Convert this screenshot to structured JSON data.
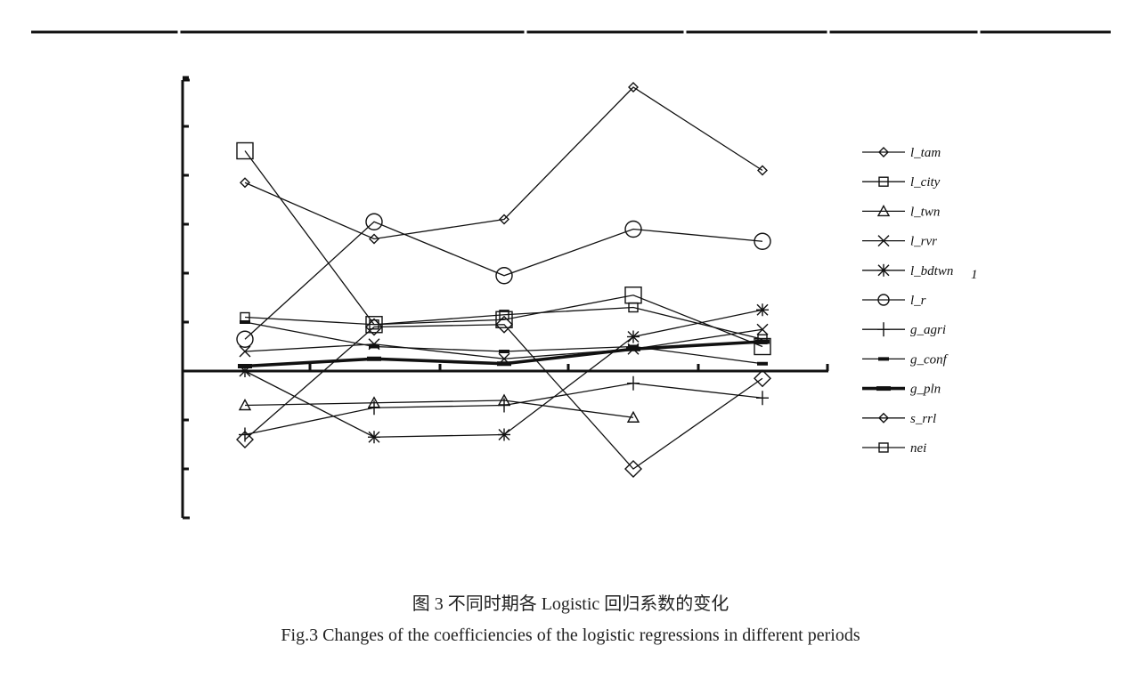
{
  "caption": {
    "cn": "图 3  不同时期各 Logistic 回归系数的变化",
    "en": "Fig.3  Changes of the coefficiencies of the logistic regressions in different periods"
  },
  "chart_data": {
    "type": "line",
    "title": "",
    "xlabel": "",
    "ylabel": "",
    "x": [
      1,
      2,
      3,
      4,
      5
    ],
    "ylim": [
      -3,
      6
    ],
    "grid": false,
    "legend_position": "right",
    "series": [
      {
        "name": "l_tam",
        "marker": "diamond-small",
        "values": [
          3.85,
          2.7,
          3.1,
          5.8,
          4.1
        ]
      },
      {
        "name": "l_city",
        "marker": "square-small",
        "values": [
          1.1,
          0.95,
          1.15,
          1.3,
          0.65
        ]
      },
      {
        "name": "l_twn",
        "marker": "triangle",
        "values": [
          -0.7,
          -0.65,
          -0.6,
          -0.95,
          null
        ]
      },
      {
        "name": "l_rvr",
        "marker": "x",
        "values": [
          0.4,
          0.55,
          0.25,
          0.45,
          0.85
        ]
      },
      {
        "name": "l_bdtwn1",
        "marker": "asterisk",
        "values": [
          0.0,
          -1.35,
          -1.3,
          0.7,
          1.25
        ]
      },
      {
        "name": "l_r",
        "marker": "circle",
        "values": [
          0.65,
          3.05,
          1.95,
          2.9,
          2.65
        ]
      },
      {
        "name": "g_agri",
        "marker": "plus",
        "values": [
          -1.3,
          -0.75,
          -0.7,
          -0.25,
          -0.55
        ]
      },
      {
        "name": "g_conf",
        "marker": "dash",
        "values": [
          1.0,
          0.5,
          0.4,
          0.5,
          0.15
        ]
      },
      {
        "name": "g_pln",
        "marker": "dash-thick",
        "values": [
          0.1,
          0.25,
          0.15,
          0.45,
          0.6
        ]
      },
      {
        "name": "s_rrl",
        "marker": "diamond",
        "values": [
          -1.4,
          0.9,
          0.95,
          -2.0,
          -0.15
        ]
      },
      {
        "name": "nei",
        "marker": "square",
        "values": [
          4.5,
          0.95,
          1.05,
          1.55,
          0.5
        ]
      }
    ],
    "legend_labels": [
      "l_tam",
      "l_city",
      "l_twn",
      "l_rvr",
      "l_bdtwn",
      "l_r",
      "g_agri",
      "g_conf",
      "g_pln",
      "s_rrl",
      "nei"
    ],
    "legend_subscript": {
      "l_bdtwn": "1"
    }
  }
}
